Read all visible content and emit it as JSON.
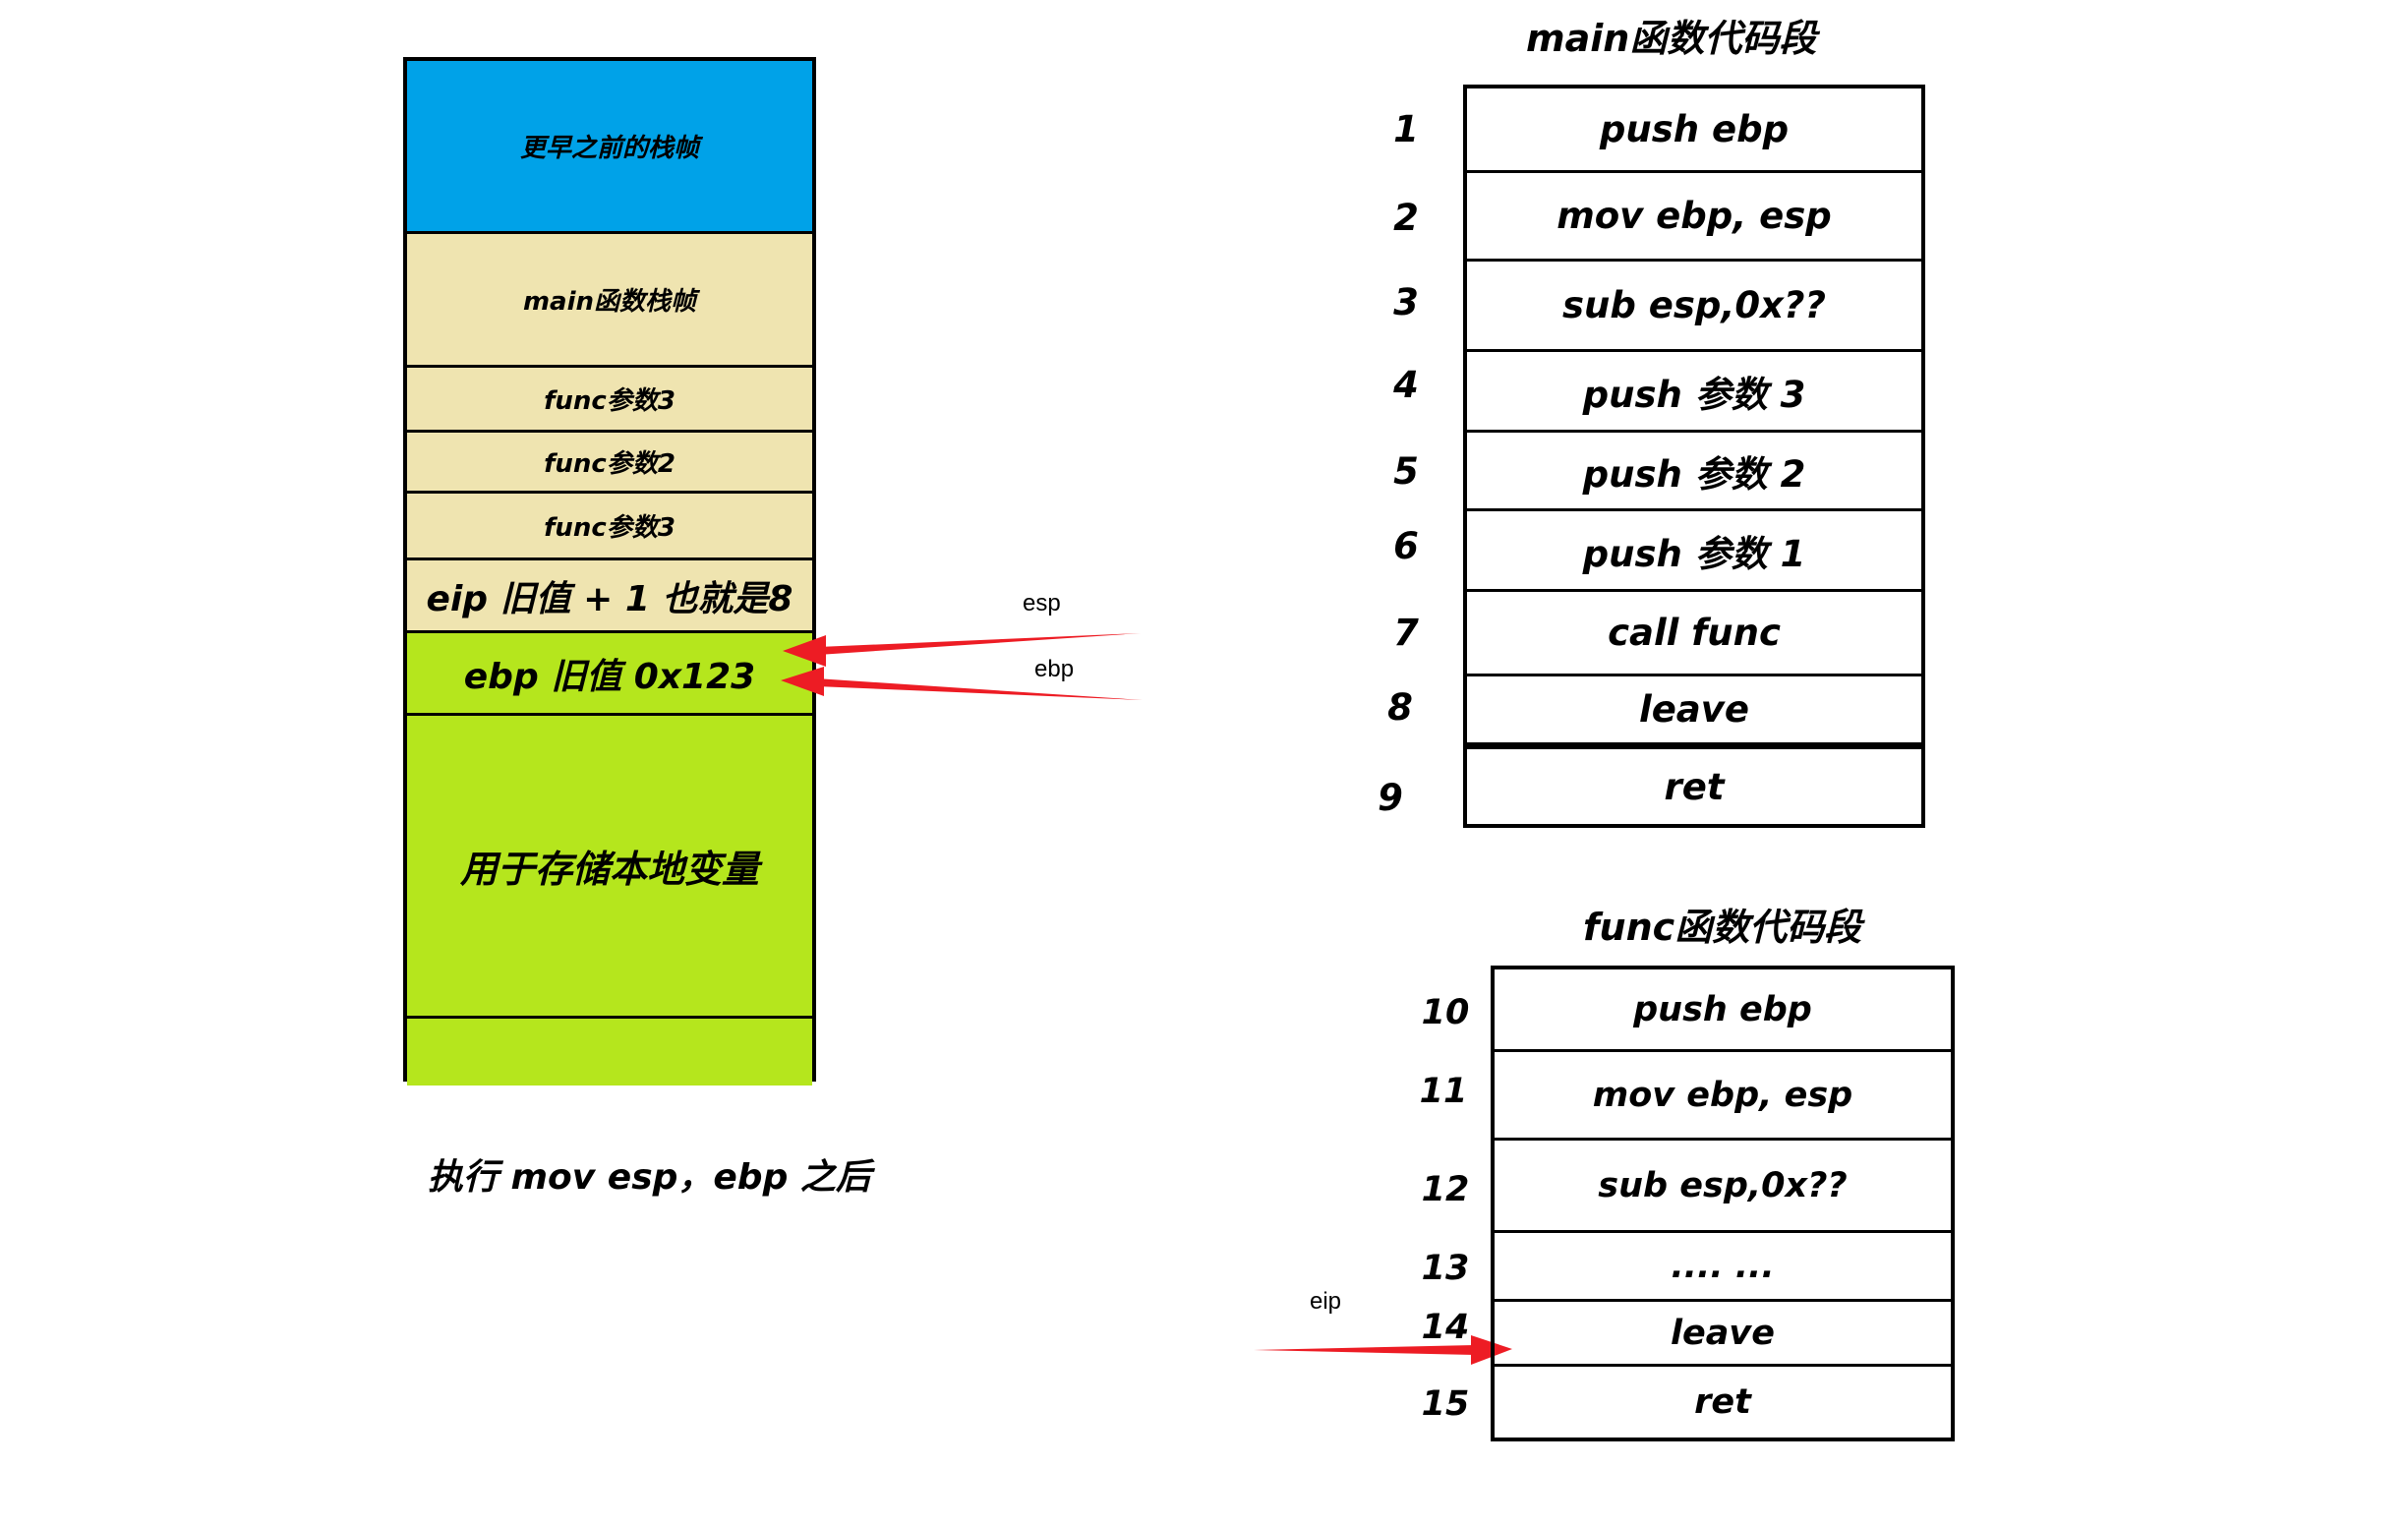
{
  "stack": {
    "segments": [
      {
        "label": "更早之前的栈帧",
        "color": "#00a2e8"
      },
      {
        "label": "main函数栈帧",
        "color": "#efe4b0"
      },
      {
        "label": "func参数3",
        "color": "#efe4b0"
      },
      {
        "label": "func参数2",
        "color": "#efe4b0"
      },
      {
        "label": "func参数3",
        "color": "#efe4b0"
      },
      {
        "label": "eip 旧值 + 1 也就是8",
        "color": "#efe4b0"
      },
      {
        "label": "ebp 旧值 0x123",
        "color": "#b5e61d"
      },
      {
        "label": "用于存储本地变量",
        "color": "#b5e61d"
      },
      {
        "label": "",
        "color": "#b5e61d"
      }
    ],
    "caption": "执行 mov esp，ebp 之后"
  },
  "pointers": {
    "esp": "esp",
    "ebp": "ebp",
    "eip": "eip",
    "arrow_color": "#ed1c24"
  },
  "main_code": {
    "title": "main函数代码段",
    "rows": [
      {
        "num": "1",
        "text": "push ebp"
      },
      {
        "num": "2",
        "text": "mov ebp, esp"
      },
      {
        "num": "3",
        "text": "sub esp,0x??"
      },
      {
        "num": "4",
        "text": "push 参数 3"
      },
      {
        "num": "5",
        "text": "push 参数 2"
      },
      {
        "num": "6",
        "text": "push 参数 1"
      },
      {
        "num": "7",
        "text": "call func"
      },
      {
        "num": "8",
        "text": "leave"
      },
      {
        "num": "9",
        "text": "ret"
      }
    ]
  },
  "func_code": {
    "title": "func函数代码段",
    "rows": [
      {
        "num": "10",
        "text": "push ebp"
      },
      {
        "num": "11",
        "text": "mov ebp, esp"
      },
      {
        "num": "12",
        "text": "sub esp,0x??"
      },
      {
        "num": "13",
        "text": "....  ..."
      },
      {
        "num": "14",
        "text": "leave"
      },
      {
        "num": "15",
        "text": "ret"
      }
    ]
  }
}
